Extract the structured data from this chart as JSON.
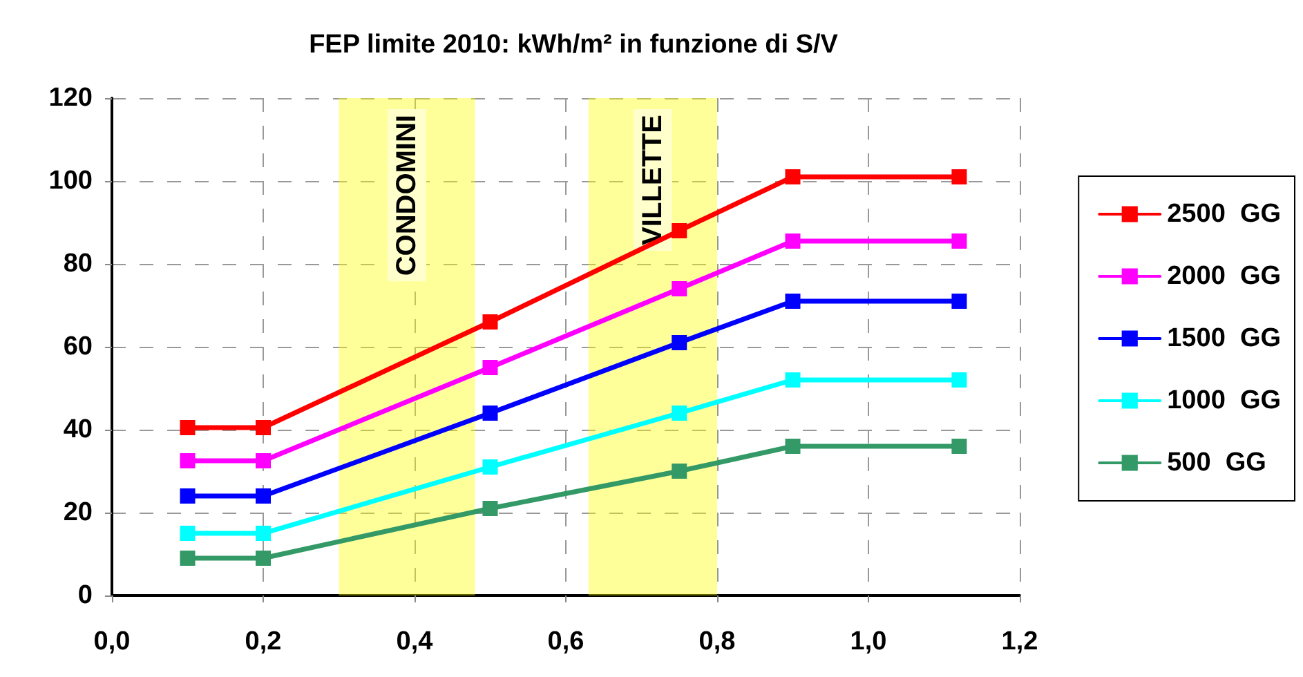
{
  "chart_data": {
    "type": "line",
    "title": "FEP limite 2010: kWh/m² in funzione di S/V",
    "x": [
      0.1,
      0.2,
      0.5,
      0.75,
      0.9,
      1.12
    ],
    "xlim": [
      0,
      1.2
    ],
    "xticks": [
      {
        "value": 0,
        "label": "0,0"
      },
      {
        "value": 0.2,
        "label": "0,2"
      },
      {
        "value": 0.4,
        "label": "0,4"
      },
      {
        "value": 0.6,
        "label": "0,6"
      },
      {
        "value": 0.8,
        "label": "0,8"
      },
      {
        "value": 1,
        "label": "1,0"
      },
      {
        "value": 1.2,
        "label": "1,2"
      }
    ],
    "ylim": [
      0,
      120
    ],
    "yticks": [
      0,
      20,
      40,
      60,
      80,
      100,
      120
    ],
    "series": [
      {
        "name": "2500  GG",
        "color": "#ff0000",
        "values": [
          40.5,
          40.5,
          66,
          88,
          101,
          101
        ]
      },
      {
        "name": "2000  GG",
        "color": "#ff00ff",
        "values": [
          32.5,
          32.5,
          55,
          74,
          85.5,
          85.5
        ]
      },
      {
        "name": "1500  GG",
        "color": "#0000ff",
        "values": [
          24,
          24,
          44,
          61,
          71,
          71
        ]
      },
      {
        "name": "1000  GG",
        "color": "#00ffff",
        "values": [
          15,
          15,
          31,
          44,
          52,
          52
        ]
      },
      {
        "name": "500  GG",
        "color": "#339966",
        "values": [
          9,
          9,
          21,
          30,
          36,
          36
        ]
      }
    ],
    "bands": [
      {
        "axis": "x",
        "from": 0.3,
        "to": 0.48,
        "label": "CONDOMINI",
        "color": "#ffff00"
      },
      {
        "axis": "x",
        "from": 0.63,
        "to": 0.8,
        "label": "VILLETTE",
        "color": "#ffff00"
      }
    ],
    "grid": true,
    "legend": "right",
    "marker": "square",
    "line_style": "solid"
  }
}
